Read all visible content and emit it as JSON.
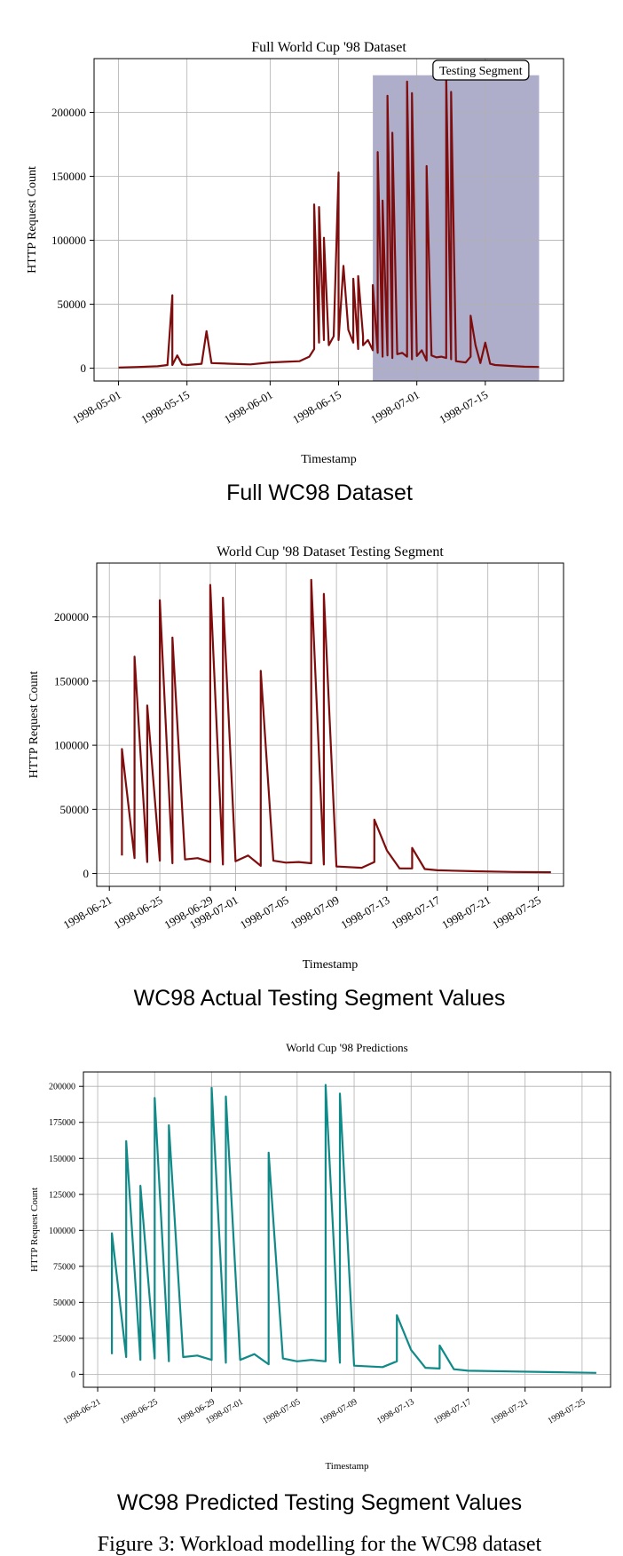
{
  "figure": {
    "caption": "Figure 3: Workload modelling for the WC98 dataset"
  },
  "chart_data": [
    {
      "type": "line",
      "title": "Full World Cup '98 Dataset",
      "subtitle": "Full WC98 Dataset",
      "xlabel": "Timestamp",
      "ylabel": "HTTP Request Count",
      "xlim": [
        "1998-04-26",
        "1998-07-31"
      ],
      "ylim": [
        -10000,
        242000
      ],
      "x_ticks": [
        "1998-05-01",
        "1998-05-15",
        "1998-06-01",
        "1998-06-15",
        "1998-07-01",
        "1998-07-15"
      ],
      "y_ticks": [
        0,
        50000,
        100000,
        150000,
        200000
      ],
      "grid": true,
      "color": "#7f0d0d",
      "shaded_region": {
        "label": "Testing Segment",
        "x_start": "1998-06-22",
        "x_end": "1998-07-26",
        "color": "#aeaecb"
      },
      "series": [
        {
          "name": "",
          "x": [
            "1998-05-01",
            "1998-05-05",
            "1998-05-09",
            "1998-05-11",
            "1998-05-12",
            "1998-05-12",
            "1998-05-13",
            "1998-05-14",
            "1998-05-15",
            "1998-05-18",
            "1998-05-19",
            "1998-05-20",
            "1998-05-24",
            "1998-05-28",
            "1998-06-01",
            "1998-06-04",
            "1998-06-07",
            "1998-06-09",
            "1998-06-10",
            "1998-06-10",
            "1998-06-11",
            "1998-06-11",
            "1998-06-12",
            "1998-06-12",
            "1998-06-13",
            "1998-06-14",
            "1998-06-15",
            "1998-06-15",
            "1998-06-16",
            "1998-06-17",
            "1998-06-18",
            "1998-06-18",
            "1998-06-19",
            "1998-06-19",
            "1998-06-20",
            "1998-06-20",
            "1998-06-21",
            "1998-06-22",
            "1998-06-22",
            "1998-06-23",
            "1998-06-23",
            "1998-06-24",
            "1998-06-24",
            "1998-06-25",
            "1998-06-25",
            "1998-06-26",
            "1998-06-26",
            "1998-06-27",
            "1998-06-28",
            "1998-06-29",
            "1998-06-29",
            "1998-06-30",
            "1998-06-30",
            "1998-07-01",
            "1998-07-02",
            "1998-07-03",
            "1998-07-03",
            "1998-07-04",
            "1998-07-05",
            "1998-07-06",
            "1998-07-07",
            "1998-07-07",
            "1998-07-08",
            "1998-07-08",
            "1998-07-09",
            "1998-07-11",
            "1998-07-12",
            "1998-07-12",
            "1998-07-13",
            "1998-07-14",
            "1998-07-15",
            "1998-07-16",
            "1998-07-17",
            "1998-07-20",
            "1998-07-23",
            "1998-07-26"
          ],
          "y": [
            500,
            1000,
            1500,
            2500,
            57000,
            2500,
            10000,
            3000,
            2500,
            3500,
            29000,
            4000,
            3500,
            3000,
            4500,
            5000,
            5500,
            9000,
            15000,
            128000,
            20000,
            126000,
            22000,
            102000,
            18000,
            25000,
            153000,
            22000,
            80000,
            30000,
            20000,
            70000,
            15000,
            72000,
            25000,
            18000,
            22000,
            14000,
            65000,
            12000,
            169000,
            9000,
            131000,
            10000,
            213000,
            8000,
            184000,
            11000,
            12000,
            9000,
            224000,
            7000,
            215000,
            9500,
            14000,
            6000,
            158000,
            10000,
            8500,
            9000,
            8000,
            228000,
            7000,
            216000,
            5500,
            4500,
            9000,
            41000,
            18000,
            4000,
            20000,
            3500,
            2500,
            1800,
            1200,
            1000
          ]
        }
      ]
    },
    {
      "type": "line",
      "title": "World Cup '98 Dataset Testing Segment",
      "subtitle": "WC98 Actual Testing Segment Values",
      "xlabel": "Timestamp",
      "ylabel": "HTTP Request Count",
      "xlim": [
        "1998-06-20",
        "1998-07-27"
      ],
      "ylim": [
        -10000,
        242000
      ],
      "x_ticks": [
        "1998-06-21",
        "1998-06-25",
        "1998-06-29",
        "1998-07-01",
        "1998-07-05",
        "1998-07-09",
        "1998-07-13",
        "1998-07-17",
        "1998-07-21",
        "1998-07-25"
      ],
      "y_ticks": [
        0,
        50000,
        100000,
        150000,
        200000
      ],
      "grid": true,
      "color": "#7f0d0d",
      "series": [
        {
          "name": "",
          "x": [
            "1998-06-22",
            "1998-06-22",
            "1998-06-23",
            "1998-06-23",
            "1998-06-24",
            "1998-06-24",
            "1998-06-25",
            "1998-06-25",
            "1998-06-26",
            "1998-06-26",
            "1998-06-27",
            "1998-06-28",
            "1998-06-29",
            "1998-06-29",
            "1998-06-30",
            "1998-06-30",
            "1998-07-01",
            "1998-07-02",
            "1998-07-03",
            "1998-07-03",
            "1998-07-04",
            "1998-07-05",
            "1998-07-06",
            "1998-07-07",
            "1998-07-07",
            "1998-07-08",
            "1998-07-08",
            "1998-07-09",
            "1998-07-11",
            "1998-07-12",
            "1998-07-12",
            "1998-07-13",
            "1998-07-14",
            "1998-07-15",
            "1998-07-15",
            "1998-07-16",
            "1998-07-17",
            "1998-07-20",
            "1998-07-23",
            "1998-07-26"
          ],
          "y": [
            14000,
            97000,
            12000,
            169000,
            9000,
            131000,
            10000,
            213000,
            8000,
            184000,
            11000,
            12000,
            9000,
            225000,
            7000,
            215000,
            9500,
            14000,
            6000,
            158000,
            10000,
            8500,
            9000,
            8000,
            229000,
            7000,
            218000,
            5500,
            4500,
            9000,
            42000,
            18000,
            4000,
            4000,
            20000,
            3500,
            2500,
            1800,
            1200,
            1000
          ]
        }
      ]
    },
    {
      "type": "line",
      "title": "World Cup '98 Predictions",
      "subtitle": "WC98 Predicted Testing Segment Values",
      "xlabel": "Timestamp",
      "ylabel": "HTTP Request Count",
      "xlim": [
        "1998-06-20",
        "1998-07-27"
      ],
      "ylim": [
        -9000,
        210000
      ],
      "x_ticks": [
        "1998-06-21",
        "1998-06-25",
        "1998-06-29",
        "1998-07-01",
        "1998-07-05",
        "1998-07-09",
        "1998-07-13",
        "1998-07-17",
        "1998-07-21",
        "1998-07-25"
      ],
      "y_ticks": [
        0,
        25000,
        50000,
        75000,
        100000,
        125000,
        150000,
        175000,
        200000
      ],
      "grid": true,
      "color": "#108a88",
      "series": [
        {
          "name": "",
          "x": [
            "1998-06-22",
            "1998-06-22",
            "1998-06-23",
            "1998-06-23",
            "1998-06-24",
            "1998-06-24",
            "1998-06-25",
            "1998-06-25",
            "1998-06-26",
            "1998-06-26",
            "1998-06-27",
            "1998-06-28",
            "1998-06-29",
            "1998-06-29",
            "1998-06-30",
            "1998-06-30",
            "1998-07-01",
            "1998-07-02",
            "1998-07-03",
            "1998-07-03",
            "1998-07-04",
            "1998-07-05",
            "1998-07-06",
            "1998-07-07",
            "1998-07-07",
            "1998-07-08",
            "1998-07-08",
            "1998-07-09",
            "1998-07-11",
            "1998-07-12",
            "1998-07-12",
            "1998-07-13",
            "1998-07-14",
            "1998-07-15",
            "1998-07-15",
            "1998-07-16",
            "1998-07-17",
            "1998-07-20",
            "1998-07-23",
            "1998-07-26"
          ],
          "y": [
            14000,
            98000,
            12000,
            162000,
            10000,
            131000,
            11000,
            192000,
            9000,
            173000,
            12000,
            13000,
            10000,
            199000,
            8000,
            193000,
            10000,
            14000,
            7000,
            154000,
            11000,
            9000,
            10000,
            9000,
            201000,
            8000,
            195000,
            6000,
            5000,
            9000,
            41000,
            17000,
            4500,
            4000,
            20000,
            3500,
            2500,
            2000,
            1500,
            1000
          ]
        }
      ]
    }
  ]
}
